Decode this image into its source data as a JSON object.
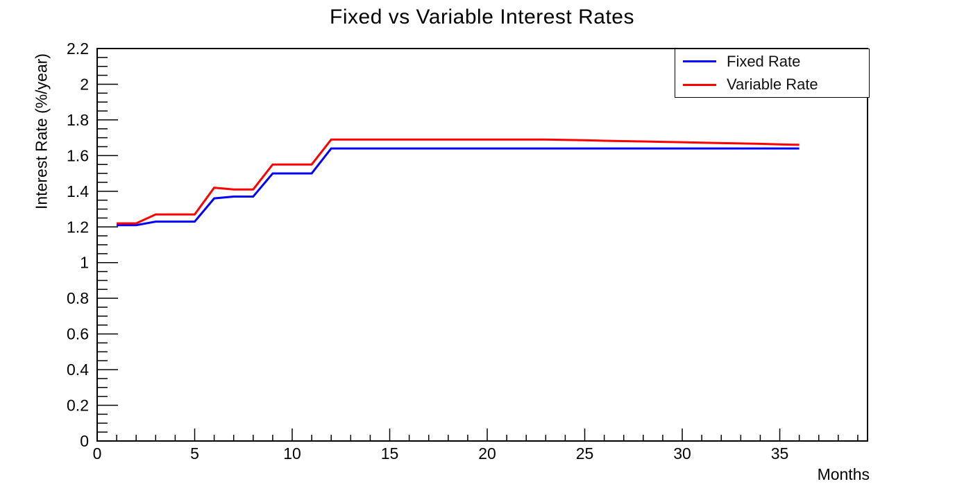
{
  "title": "Fixed vs Variable Interest Rates",
  "chart_data": {
    "type": "line",
    "title": "Fixed vs Variable Interest Rates",
    "xlabel": "Months",
    "ylabel": "Interest Rate (%/year)",
    "xlim": [
      0,
      39.5
    ],
    "ylim": [
      0,
      2.2
    ],
    "grid": false,
    "legend_position": "top-right",
    "x_major_ticks": [
      0,
      5,
      10,
      15,
      20,
      25,
      30,
      35
    ],
    "x_minor_step": 1,
    "y_major_step": 0.2,
    "y_minor_step": 0.05,
    "y_tick_labels": [
      "0",
      "0.2",
      "0.4",
      "0.6",
      "0.8",
      "1",
      "1.2",
      "1.4",
      "1.6",
      "1.8",
      "2",
      "2.2"
    ],
    "x": [
      1,
      2,
      3,
      4,
      5,
      6,
      7,
      8,
      9,
      10,
      11,
      12,
      13,
      14,
      15,
      16,
      17,
      18,
      19,
      20,
      21,
      22,
      23,
      24,
      25,
      26,
      27,
      28,
      29,
      30,
      31,
      32,
      33,
      34,
      35,
      36
    ],
    "series": [
      {
        "name": "Fixed Rate",
        "color": "#0000ff",
        "values": [
          1.21,
          1.21,
          1.23,
          1.23,
          1.23,
          1.36,
          1.37,
          1.37,
          1.5,
          1.5,
          1.5,
          1.64,
          1.64,
          1.64,
          1.64,
          1.64,
          1.64,
          1.64,
          1.64,
          1.64,
          1.64,
          1.64,
          1.64,
          1.64,
          1.64,
          1.64,
          1.64,
          1.64,
          1.64,
          1.64,
          1.64,
          1.64,
          1.64,
          1.64,
          1.64,
          1.64
        ]
      },
      {
        "name": "Variable Rate",
        "color": "#ff0000",
        "values": [
          1.22,
          1.22,
          1.27,
          1.27,
          1.27,
          1.42,
          1.41,
          1.41,
          1.55,
          1.55,
          1.55,
          1.69,
          1.69,
          1.69,
          1.69,
          1.69,
          1.69,
          1.69,
          1.69,
          1.69,
          1.69,
          1.69,
          1.69,
          1.688,
          1.686,
          1.683,
          1.681,
          1.679,
          1.677,
          1.675,
          1.672,
          1.67,
          1.668,
          1.666,
          1.663,
          1.66
        ]
      }
    ]
  },
  "colors": {
    "axis": "#000000",
    "background": "#ffffff"
  }
}
